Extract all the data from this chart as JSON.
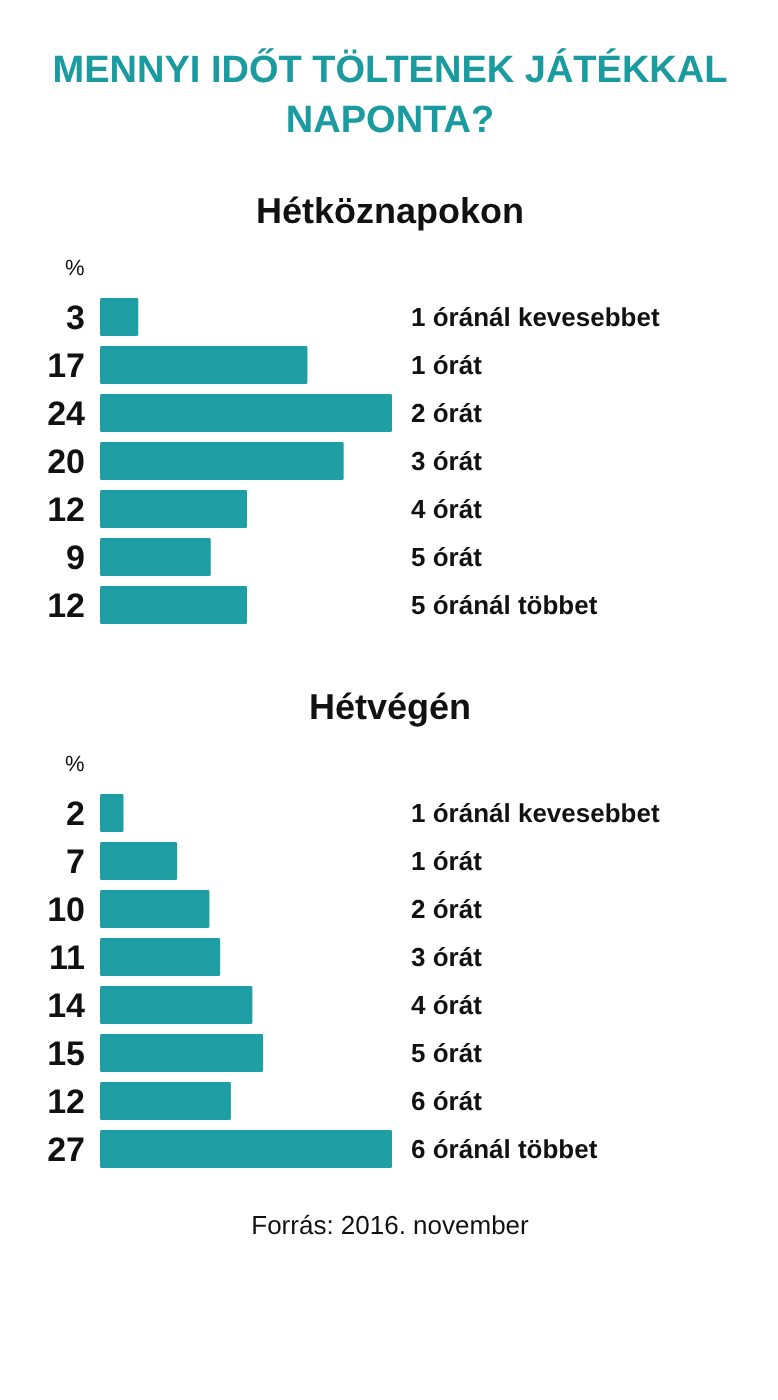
{
  "chart_data": [
    {
      "type": "bar",
      "orientation": "horizontal",
      "title": "MENNYI IDŐT TÖLTENEK JÁTÉKKAL NAPONTA?",
      "subtitle": "Hétköznapokon",
      "annotations": [
        "%"
      ],
      "categories": [
        "1 óránál kevesebbet",
        "1 órát",
        "2 órát",
        "3 órát",
        "4 órát",
        "5 órát",
        "5 óránál többet"
      ],
      "values": [
        3,
        17,
        24,
        20,
        12,
        9,
        12
      ],
      "color": "#1f9ea3",
      "data_labels": true
    },
    {
      "type": "bar",
      "orientation": "horizontal",
      "subtitle": "Hétvégén",
      "annotations": [
        "%",
        "Forrás: 2016. november"
      ],
      "categories": [
        "1 óránál kevesebbet",
        "1 órát",
        "2 órát",
        "3 órát",
        "4 órát",
        "5 órát",
        "6 órát",
        "6 óránál többet"
      ],
      "values": [
        2,
        7,
        10,
        11,
        14,
        15,
        12,
        27
      ],
      "color": "#1f9ea3",
      "data_labels": true
    }
  ]
}
